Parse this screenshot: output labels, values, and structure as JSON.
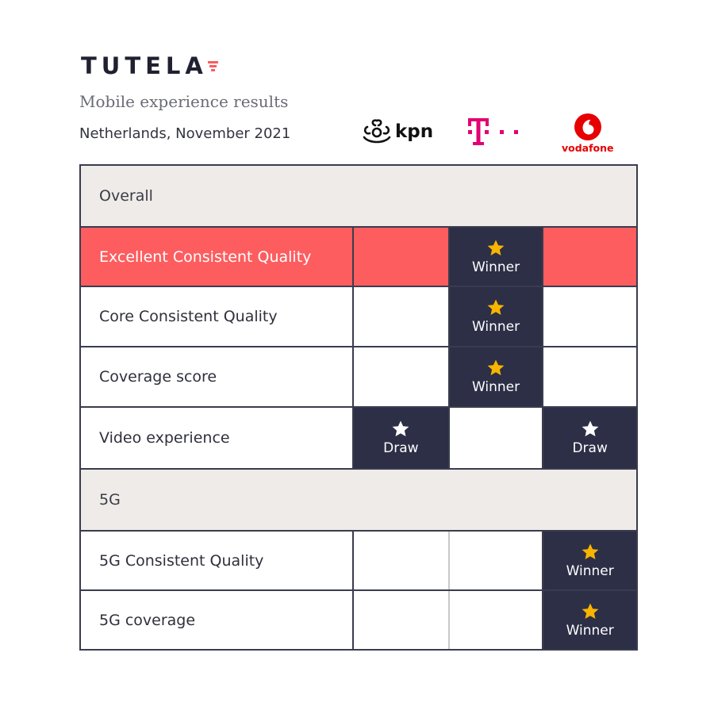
{
  "brand": {
    "name": "TUTELA",
    "accent_color": "#fd5d5f"
  },
  "subtitle": "Mobile experience results",
  "meta": "Netherlands, November 2021",
  "operators": [
    {
      "name": "kpn",
      "logo_icon": "kpn-crown-logo"
    },
    {
      "name": "T-Mobile",
      "logo_icon": "telekom-t-logo",
      "color": "#e20074"
    },
    {
      "name": "vodafone",
      "logo_icon": "vodafone-speechmark-logo",
      "color": "#e60000"
    }
  ],
  "table": {
    "sections": [
      {
        "title": "Overall",
        "rows": [
          {
            "label": "Excellent Consistent Quality",
            "highlight": true,
            "results": [
              "",
              "Winner",
              ""
            ]
          },
          {
            "label": "Core Consistent Quality",
            "results": [
              "",
              "Winner",
              ""
            ]
          },
          {
            "label": "Coverage score",
            "results": [
              "",
              "Winner",
              ""
            ]
          },
          {
            "label": "Video experience",
            "results": [
              "Draw",
              "",
              "Draw"
            ]
          }
        ]
      },
      {
        "title": "5G",
        "rows": [
          {
            "label": "5G Consistent Quality",
            "results": [
              "",
              "",
              "Winner"
            ]
          },
          {
            "label": "5G coverage",
            "results": [
              "",
              "",
              "Winner"
            ]
          }
        ]
      }
    ]
  },
  "colors": {
    "highlight_row": "#fd5d5f",
    "result_cell": "#2d2f47",
    "winner_star": "#f7b500",
    "draw_star": "#ffffff",
    "section_bg": "#eeebe9"
  }
}
